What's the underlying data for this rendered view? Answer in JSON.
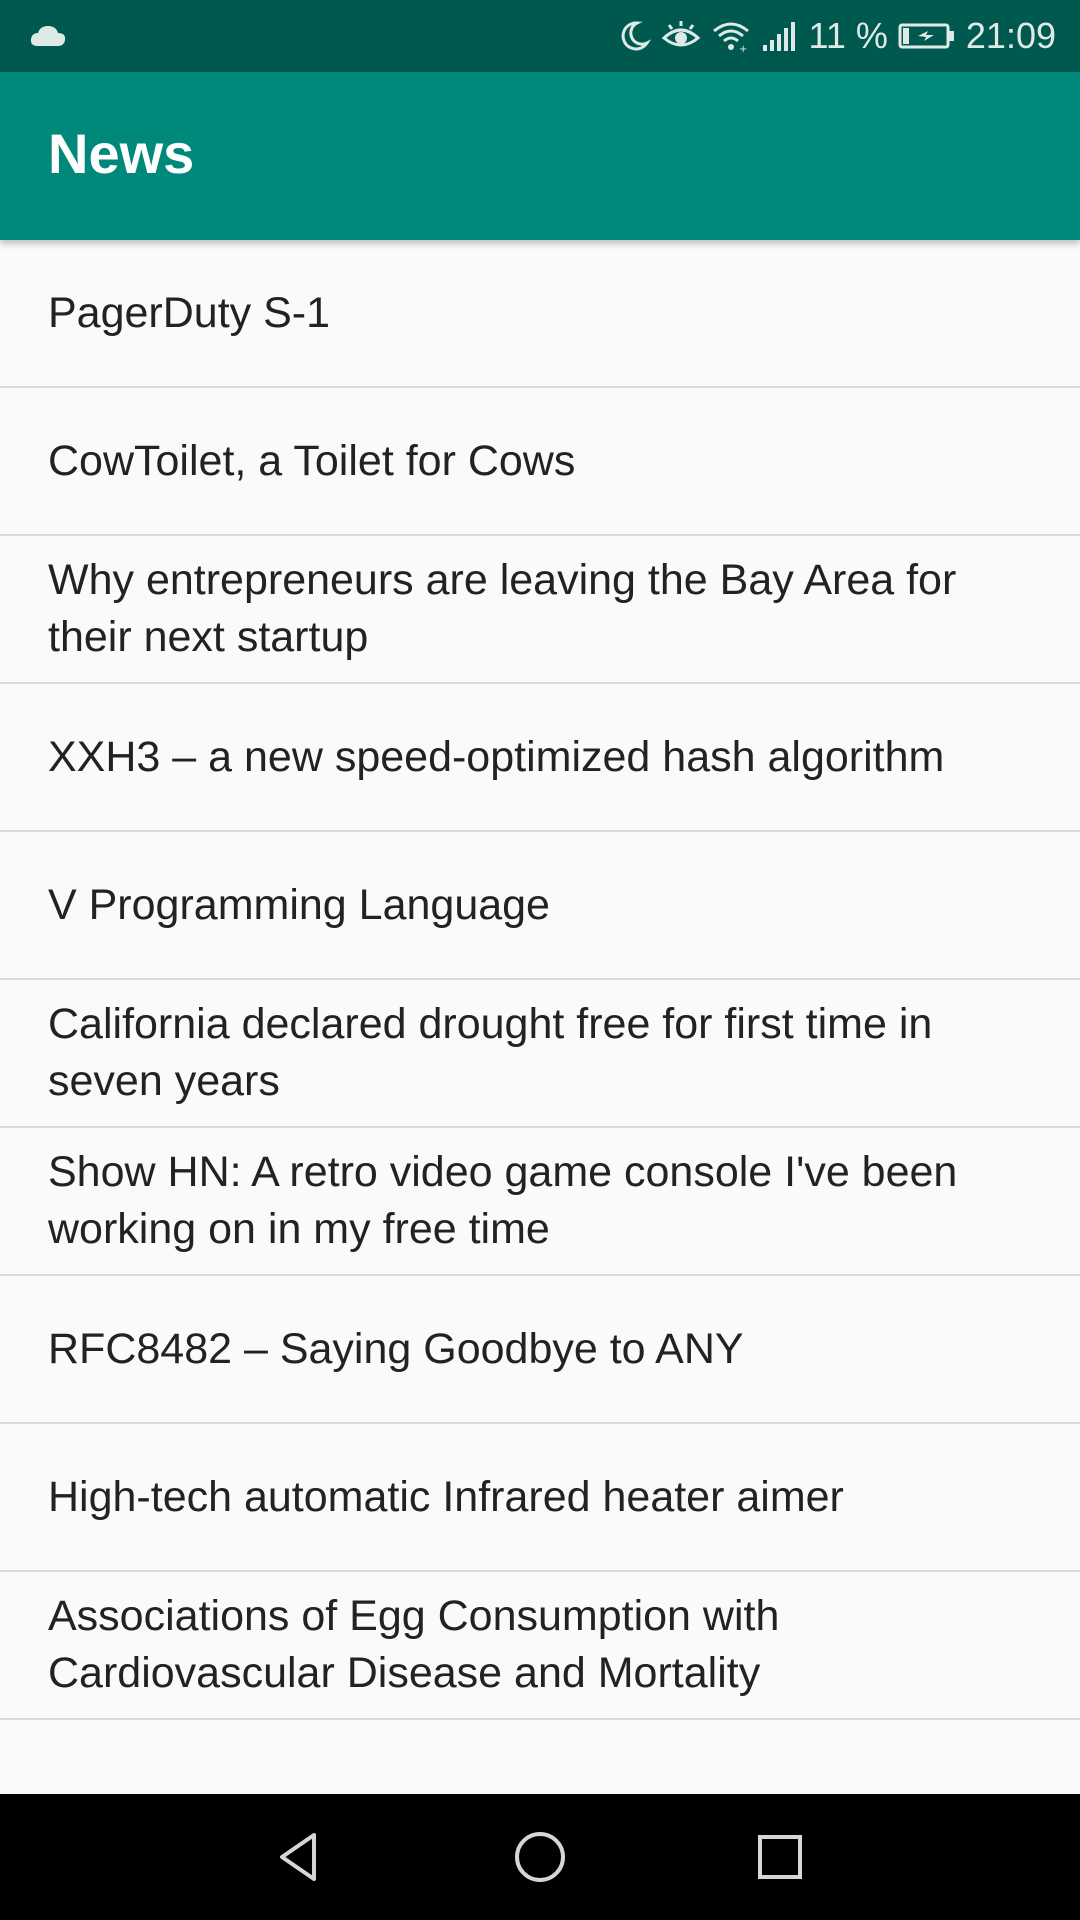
{
  "status_bar": {
    "battery_text": "11 %",
    "time": "21:09",
    "left_icon": "cloud-icon",
    "right_icons": [
      "moon-icon",
      "eye-icon",
      "wifi-icon",
      "signal-icon",
      "battery-charging-icon"
    ]
  },
  "app_bar": {
    "title": "News"
  },
  "news": [
    {
      "title": "PagerDuty S-1"
    },
    {
      "title": "CowToilet, a Toilet for Cows"
    },
    {
      "title": "Why entrepreneurs are leaving the Bay Area for their next startup"
    },
    {
      "title": "XXH3 – a new speed-optimized hash algorithm"
    },
    {
      "title": "V Programming Language"
    },
    {
      "title": "California declared drought free for first time in seven years"
    },
    {
      "title": "Show HN: A retro video game console I've been working on in my free time"
    },
    {
      "title": "RFC8482 – Saying Goodbye to ANY"
    },
    {
      "title": "High-tech automatic Infrared heater aimer"
    },
    {
      "title": "Associations of Egg Consumption with Cardiovascular Disease and Mortality"
    }
  ],
  "nav_bar": {
    "buttons": [
      "back-icon",
      "home-icon",
      "recents-icon"
    ]
  },
  "colors": {
    "status_bar": "#00594f",
    "app_bar": "#00897b",
    "background": "#fafafa",
    "divider": "#d9d9d9",
    "text": "#222222",
    "nav_bar": "#000000"
  }
}
